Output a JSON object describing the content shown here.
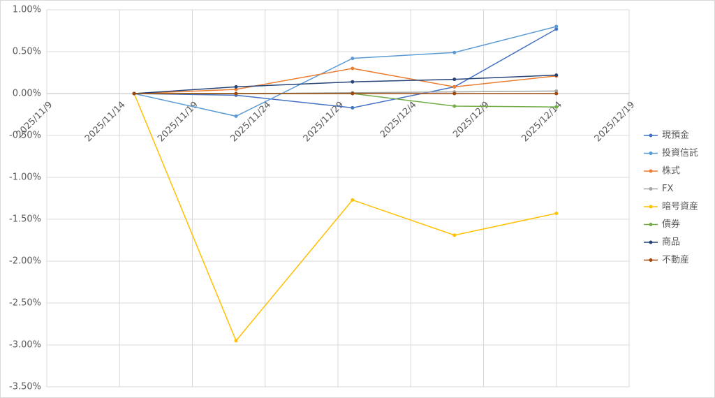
{
  "chart_data": {
    "type": "line",
    "x": [
      "2025/11/15",
      "2025/11/22",
      "2025/11/30",
      "2025/12/7",
      "2025/12/14"
    ],
    "xlim": [
      "2025/11/9",
      "2025/12/19"
    ],
    "xticks": [
      "2025/11/9",
      "2025/11/14",
      "2025/11/19",
      "2025/11/24",
      "2025/11/29",
      "2025/12/4",
      "2025/12/9",
      "2025/12/14",
      "2025/12/19"
    ],
    "ylim": [
      -3.5,
      1
    ],
    "yticks": [
      {
        "value": -3.5,
        "label": "-3.50%"
      },
      {
        "value": -3,
        "label": "-3.00%"
      },
      {
        "value": -2.5,
        "label": "-2.50%"
      },
      {
        "value": -2,
        "label": "-2.00%"
      },
      {
        "value": -1.5,
        "label": "-1.50%"
      },
      {
        "value": -1,
        "label": "-1.00%"
      },
      {
        "value": -0.5,
        "label": "-0.50%"
      },
      {
        "value": 0,
        "label": "0.00%"
      },
      {
        "value": 0.5,
        "label": "0.50%"
      },
      {
        "value": 1,
        "label": "1.00%"
      }
    ],
    "grid": true,
    "legend": "right",
    "series": [
      {
        "name": "現預金",
        "color": "#4472c4",
        "values": [
          0,
          -0.02,
          -0.17,
          0.08,
          0.77
        ]
      },
      {
        "name": "投資信託",
        "color": "#5b9bd5",
        "values": [
          0,
          -0.27,
          0.42,
          0.49,
          0.8
        ]
      },
      {
        "name": "株式",
        "color": "#ed7d31",
        "values": [
          0,
          0.05,
          0.3,
          0.08,
          0.21
        ]
      },
      {
        "name": "FX",
        "color": "#a5a5a5",
        "values": [
          0,
          0,
          0.01,
          0.02,
          0.03
        ]
      },
      {
        "name": "暗号資産",
        "color": "#ffc000",
        "values": [
          0,
          -2.95,
          -1.27,
          -1.69,
          -1.43
        ]
      },
      {
        "name": "債券",
        "color": "#70ad47",
        "values": [
          0,
          0,
          0,
          -0.15,
          -0.16
        ]
      },
      {
        "name": "商品",
        "color": "#264478",
        "values": [
          0,
          0.08,
          0.14,
          0.17,
          0.22
        ]
      },
      {
        "name": "不動産",
        "color": "#9e480e",
        "values": [
          0,
          0,
          0,
          0,
          0
        ]
      }
    ]
  }
}
